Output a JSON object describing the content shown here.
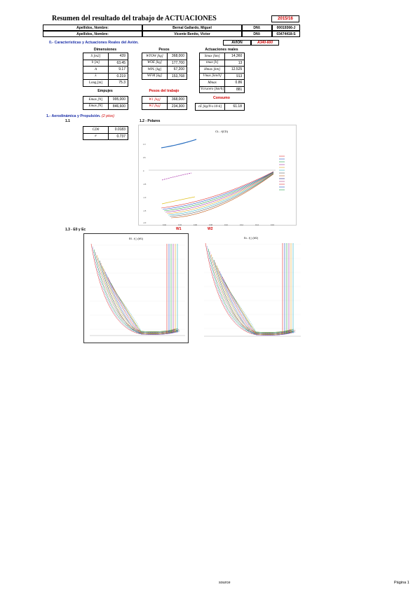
{
  "header": {
    "title": "Resumen del resultado del trabajo de ACTUACIONES",
    "year": "2015/16",
    "rows": [
      {
        "label": "Apellidos, Nombre:",
        "name": "Bernal Gallardo, Miguel",
        "dni_label": "DNI:",
        "dni": "00019366-J"
      },
      {
        "label": "Apellidos, Nombre:",
        "name": "Vicente Benito, Víctor",
        "dni_label": "DNI:",
        "dni": "03474418-S"
      }
    ]
  },
  "section0": {
    "title": "0.- Características y Actuaciones Reales del Avión.",
    "avion_label": "AVION",
    "avion_value": "A340-600"
  },
  "dimensiones": {
    "title": "Dimensiones",
    "rows": [
      {
        "label": "S [m2]",
        "value": "439"
      },
      {
        "label": "b [m]",
        "value": "63.45"
      },
      {
        "label": "A",
        "value": "9.17"
      },
      {
        "label": "λ",
        "value": "0.219"
      },
      {
        "label": "Long.[m]",
        "value": "75.3"
      }
    ]
  },
  "pesos": {
    "title": "Pesos",
    "rows": [
      {
        "label": "WTOW [kg]",
        "value": "368,000"
      },
      {
        "label": "WOE [kg]",
        "value": "177,700"
      },
      {
        "label": "WPL [kg]",
        "value": "67,200"
      },
      {
        "label": "WFM [kg]",
        "value": "153,768"
      }
    ]
  },
  "actuaciones": {
    "title": "Actuaciones reales",
    "rows": [
      {
        "label": "Smax [km]",
        "value": "14,360"
      },
      {
        "label": "tmax [h]",
        "value": "13"
      },
      {
        "label": "Hmax [km]",
        "value": "12.525"
      },
      {
        "label": "Vmax [km/h]",
        "value": "913"
      },
      {
        "label": "Mmax",
        "value": "0.86"
      },
      {
        "label": "Vcrucero [km/h]",
        "value": "881"
      }
    ]
  },
  "empujes": {
    "title": "Empujes",
    "rows": [
      {
        "label": "Emax [N]",
        "value": "995,000"
      },
      {
        "label": "Emax [N]",
        "value": "846,600"
      }
    ]
  },
  "pesos_trabajo": {
    "title": "Pesos del trabajo",
    "rows": [
      {
        "label": "W1 [kg]",
        "value": "368,000"
      },
      {
        "label": "W2 [kg]",
        "value": "234,300"
      }
    ]
  },
  "consumo": {
    "title": "Consumo",
    "label": "cE [kg/N·s·10-6]",
    "value": "61.18"
  },
  "section1": {
    "title": "1.- Aerodinámica y Propulsión.",
    "points": "(2 ptos)",
    "sub1": "1.1",
    "sub2": "1.2 - Polares",
    "sub3": "1.3 - E0 y Ec",
    "coeffs": [
      {
        "label": "CD0",
        "value": "0.0183"
      },
      {
        "label": "e",
        "value": "0.737"
      }
    ],
    "w1_label": "W1",
    "w2_label": "W2"
  },
  "footer": {
    "source": "source",
    "page": "Página 1"
  },
  "charts": {
    "polar_title": "CL - f(CD)",
    "e1_title": "E0 - f( )  (W1)",
    "e2_title": "Ec - f( )  (W2)"
  }
}
